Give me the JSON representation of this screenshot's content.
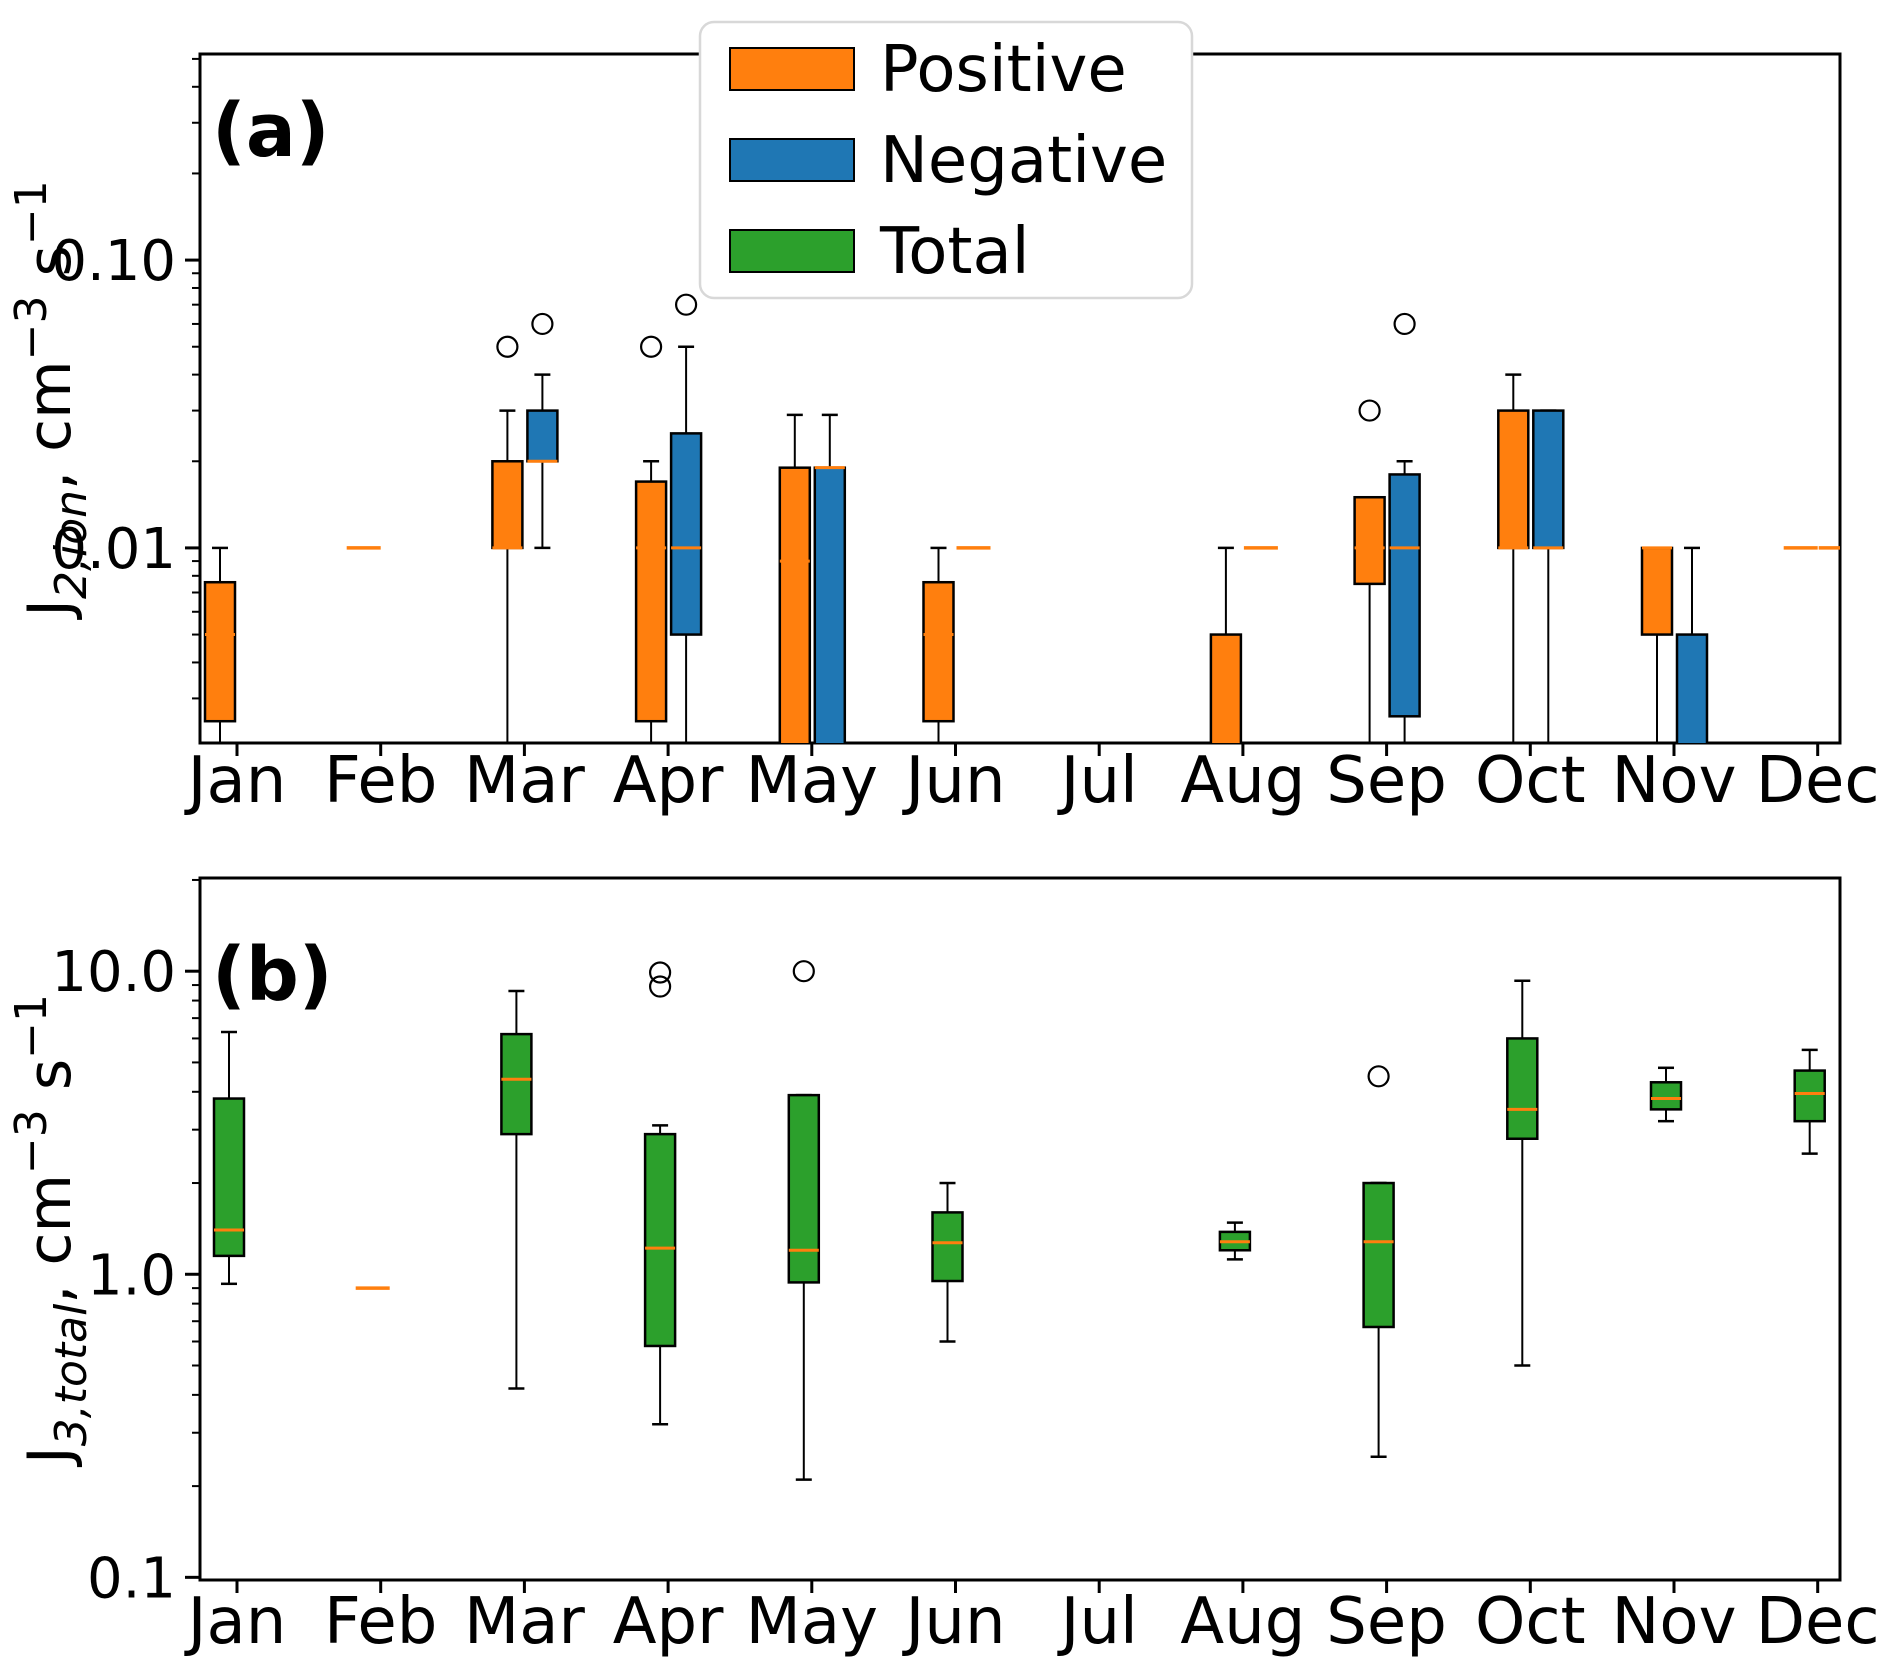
{
  "figure": {
    "months": [
      "Jan",
      "Feb",
      "Mar",
      "Apr",
      "May",
      "Jun",
      "Jul",
      "Aug",
      "Sep",
      "Oct",
      "Nov",
      "Dec"
    ]
  },
  "legend": {
    "items": [
      {
        "label": "Positive",
        "color": "#ff7f0e"
      },
      {
        "label": "Negative",
        "color": "#1f77b4"
      },
      {
        "label": "Total",
        "color": "#2ca02c"
      }
    ]
  },
  "style": {
    "median_color": "#ff7f0e",
    "box_edge_color": "#000000",
    "legend_border_color": "#d8d8d8"
  },
  "chart_data": [
    {
      "type": "box",
      "panel_label": "(a)",
      "ylabel": "J_{2,ion}, cm^{−3} s^{−1}",
      "yscale": "log",
      "ylim": [
        0.0021,
        0.52
      ],
      "yticks": [
        {
          "value": 0.01,
          "label": "0.01"
        },
        {
          "value": 0.1,
          "label": "0.10"
        }
      ],
      "categories": [
        "Jan",
        "Feb",
        "Mar",
        "Apr",
        "May",
        "Jun",
        "Jul",
        "Aug",
        "Sep",
        "Oct",
        "Nov",
        "Dec"
      ],
      "legend_position": "upper center",
      "grid": false,
      "series": [
        {
          "name": "Positive",
          "color": "#ff7f0e",
          "boxes": {
            "Jan": {
              "lo": 0.0015,
              "q1": 0.0025,
              "med": 0.005,
              "q3": 0.0076,
              "hi": 0.01
            },
            "Feb": {
              "single": 0.01
            },
            "Mar": {
              "lo": 0.0015,
              "q1": 0.01,
              "med": 0.01,
              "q3": 0.02,
              "hi": 0.03,
              "fliers": [
                0.05
              ]
            },
            "Apr": {
              "lo": 0.0015,
              "q1": 0.0025,
              "med": 0.01,
              "q3": 0.017,
              "hi": 0.02,
              "fliers": [
                0.05
              ]
            },
            "May": {
              "lo": 0.0015,
              "q1": 0.0015,
              "med": 0.009,
              "q3": 0.019,
              "hi": 0.029
            },
            "Jun": {
              "lo": 0.0015,
              "q1": 0.0025,
              "med": 0.005,
              "q3": 0.0076,
              "hi": 0.01
            },
            "Aug": {
              "lo": 0.0015,
              "q1": 0.0015,
              "med": null,
              "q3": 0.005,
              "hi": 0.01
            },
            "Sep": {
              "lo": 0.0015,
              "q1": 0.0075,
              "med": 0.01,
              "q3": 0.015,
              "hi": 0.015,
              "fliers": [
                0.03
              ]
            },
            "Oct": {
              "lo": 0.0015,
              "q1": 0.01,
              "med": 0.01,
              "q3": 0.03,
              "hi": 0.04
            },
            "Nov": {
              "lo": 0.0015,
              "q1": 0.005,
              "med": 0.01,
              "q3": 0.01,
              "hi": 0.01
            },
            "Dec": {
              "single": 0.01
            }
          }
        },
        {
          "name": "Negative",
          "color": "#1f77b4",
          "boxes": {
            "Mar": {
              "lo": 0.01,
              "q1": 0.02,
              "med": 0.02,
              "q3": 0.03,
              "hi": 0.04,
              "fliers": [
                0.06
              ]
            },
            "Apr": {
              "lo": 0.0015,
              "q1": 0.005,
              "med": 0.01,
              "q3": 0.025,
              "hi": 0.05,
              "fliers": [
                0.07
              ]
            },
            "May": {
              "lo": 0.0015,
              "q1": 0.0015,
              "med": 0.019,
              "q3": 0.019,
              "hi": 0.029
            },
            "Jun": {
              "single": 0.01
            },
            "Aug": {
              "single": 0.01
            },
            "Sep": {
              "lo": 0.0015,
              "q1": 0.0026,
              "med": 0.01,
              "q3": 0.018,
              "hi": 0.02,
              "fliers": [
                0.06
              ]
            },
            "Oct": {
              "lo": 0.0015,
              "q1": 0.01,
              "med": 0.01,
              "q3": 0.03,
              "hi": 0.03
            },
            "Nov": {
              "lo": 0.0015,
              "q1": 0.0015,
              "med": null,
              "q3": 0.005,
              "hi": 0.01
            },
            "Dec": {
              "single": 0.01
            }
          }
        }
      ]
    },
    {
      "type": "box",
      "panel_label": "(b)",
      "ylabel": "J_{3,total}, cm^{−3} s^{−1}",
      "yscale": "log",
      "ylim": [
        0.098,
        20.3
      ],
      "yticks": [
        {
          "value": 0.1,
          "label": "0.1"
        },
        {
          "value": 1.0,
          "label": "1.0"
        },
        {
          "value": 10.0,
          "label": "10.0"
        }
      ],
      "categories": [
        "Jan",
        "Feb",
        "Mar",
        "Apr",
        "May",
        "Jun",
        "Jul",
        "Aug",
        "Sep",
        "Oct",
        "Nov",
        "Dec"
      ],
      "grid": false,
      "series": [
        {
          "name": "Total",
          "color": "#2ca02c",
          "boxes": {
            "Jan": {
              "lo": 0.93,
              "q1": 1.15,
              "med": 1.4,
              "q3": 3.8,
              "hi": 6.3
            },
            "Feb": {
              "single": 0.9
            },
            "Mar": {
              "lo": 0.42,
              "q1": 2.9,
              "med": 4.4,
              "q3": 6.2,
              "hi": 8.6
            },
            "Apr": {
              "lo": 0.32,
              "q1": 0.58,
              "med": 1.22,
              "q3": 2.9,
              "hi": 3.1,
              "fliers": [
                8.9,
                9.9
              ]
            },
            "May": {
              "lo": 0.21,
              "q1": 0.94,
              "med": 1.2,
              "q3": 3.9,
              "hi": 3.9,
              "fliers": [
                10.0
              ]
            },
            "Jun": {
              "lo": 0.6,
              "q1": 0.95,
              "med": 1.27,
              "q3": 1.6,
              "hi": 2.0
            },
            "Aug": {
              "lo": 1.12,
              "q1": 1.2,
              "med": 1.28,
              "q3": 1.38,
              "hi": 1.48
            },
            "Sep": {
              "lo": 0.25,
              "q1": 0.67,
              "med": 1.28,
              "q3": 2.0,
              "hi": 2.0,
              "fliers": [
                4.5
              ]
            },
            "Oct": {
              "lo": 0.5,
              "q1": 2.8,
              "med": 3.5,
              "q3": 6.0,
              "hi": 9.3
            },
            "Nov": {
              "lo": 3.2,
              "q1": 3.5,
              "med": 3.8,
              "q3": 4.3,
              "hi": 4.8
            },
            "Dec": {
              "lo": 2.5,
              "q1": 3.2,
              "med": 3.95,
              "q3": 4.7,
              "hi": 5.5
            }
          }
        }
      ]
    }
  ]
}
